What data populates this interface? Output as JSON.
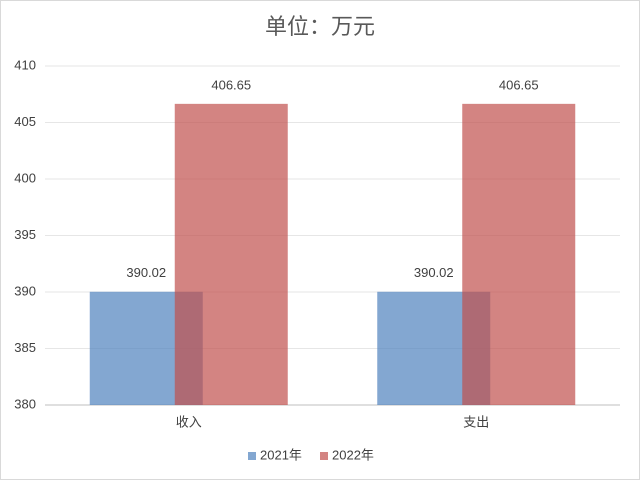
{
  "chart_data": {
    "type": "bar",
    "title": "单位：万元",
    "categories": [
      "收入",
      "支出"
    ],
    "series": [
      {
        "name": "2021年",
        "color": "#4f81bd",
        "values": [
          390.02,
          390.02
        ]
      },
      {
        "name": "2022年",
        "color": "#c0504d",
        "values": [
          406.65,
          406.65
        ]
      }
    ],
    "ylim": [
      380,
      410
    ],
    "yticks": [
      380,
      385,
      390,
      395,
      400,
      405,
      410
    ],
    "grid": true,
    "legend": "bottom"
  }
}
